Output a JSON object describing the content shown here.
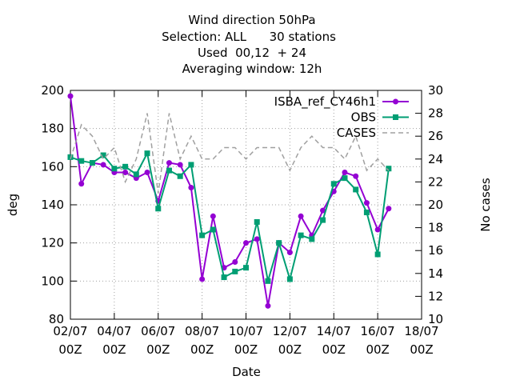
{
  "chart_data": {
    "type": "line",
    "title": [
      "Wind direction 50hPa",
      "Selection: ALL      30 stations",
      "Used  00,12  + 24",
      "Averaging window: 12h"
    ],
    "xlabel": "Date",
    "ylabel": "deg",
    "y2label": "No cases",
    "x": [
      "02/07 00Z",
      "02/07 12Z",
      "03/07 00Z",
      "03/07 12Z",
      "04/07 00Z",
      "04/07 12Z",
      "05/07 00Z",
      "05/07 12Z",
      "06/07 00Z",
      "06/07 12Z",
      "07/07 00Z",
      "07/07 12Z",
      "08/07 00Z",
      "08/07 12Z",
      "09/07 00Z",
      "09/07 12Z",
      "10/07 00Z",
      "10/07 12Z",
      "11/07 00Z",
      "11/07 12Z",
      "12/07 00Z",
      "12/07 12Z",
      "13/07 00Z",
      "13/07 12Z",
      "14/07 00Z",
      "14/07 12Z",
      "15/07 00Z",
      "15/07 12Z",
      "16/07 00Z",
      "16/07 12Z"
    ],
    "xlim": [
      "02/07 00Z",
      "18/07 00Z"
    ],
    "xticks": [
      {
        "value": "02/07 00Z",
        "label": [
          "02/07",
          "00Z"
        ]
      },
      {
        "value": "04/07 00Z",
        "label": [
          "04/07",
          "00Z"
        ]
      },
      {
        "value": "06/07 00Z",
        "label": [
          "06/07",
          "00Z"
        ]
      },
      {
        "value": "08/07 00Z",
        "label": [
          "08/07",
          "00Z"
        ]
      },
      {
        "value": "10/07 00Z",
        "label": [
          "10/07",
          "00Z"
        ]
      },
      {
        "value": "12/07 00Z",
        "label": [
          "12/07",
          "00Z"
        ]
      },
      {
        "value": "14/07 00Z",
        "label": [
          "14/07",
          "00Z"
        ]
      },
      {
        "value": "16/07 00Z",
        "label": [
          "16/07",
          "00Z"
        ]
      },
      {
        "value": "18/07 00Z",
        "label": [
          "18/07",
          "00Z"
        ]
      }
    ],
    "ylim": [
      80,
      200
    ],
    "yticks": [
      80,
      100,
      120,
      140,
      160,
      180,
      200
    ],
    "y2lim": [
      10,
      30
    ],
    "y2ticks": [
      10,
      12,
      14,
      16,
      18,
      20,
      22,
      24,
      26,
      28,
      30
    ],
    "grid": true,
    "legend": "top-right",
    "series": [
      {
        "name": "ISBA_ref_CY46h1",
        "color": "#9400d3",
        "marker": "circle",
        "values": [
          197,
          151,
          162,
          161,
          157,
          157,
          154,
          157,
          142,
          162,
          161,
          149,
          101,
          134,
          107,
          110,
          120,
          122,
          87,
          120,
          115,
          134,
          124,
          137,
          147,
          157,
          155,
          141,
          127,
          138
        ]
      },
      {
        "name": "OBS",
        "color": "#009e73",
        "marker": "square",
        "values": [
          165,
          163,
          162,
          166,
          159,
          160,
          156,
          167,
          138,
          158,
          155,
          161,
          124,
          127,
          102,
          105,
          107,
          131,
          100,
          120,
          101,
          124,
          122,
          132,
          151,
          154,
          148,
          136,
          114,
          159
        ]
      },
      {
        "name": "CASES",
        "color": "#a0a0a0",
        "axis": "y2",
        "dashed": true,
        "values": [
          24,
          27,
          26,
          24,
          25,
          22,
          24,
          28,
          21,
          28,
          24,
          26,
          24,
          24,
          25,
          25,
          24,
          25,
          25,
          25,
          23,
          25,
          26,
          25,
          25,
          24,
          26,
          23,
          24,
          23
        ]
      }
    ]
  }
}
